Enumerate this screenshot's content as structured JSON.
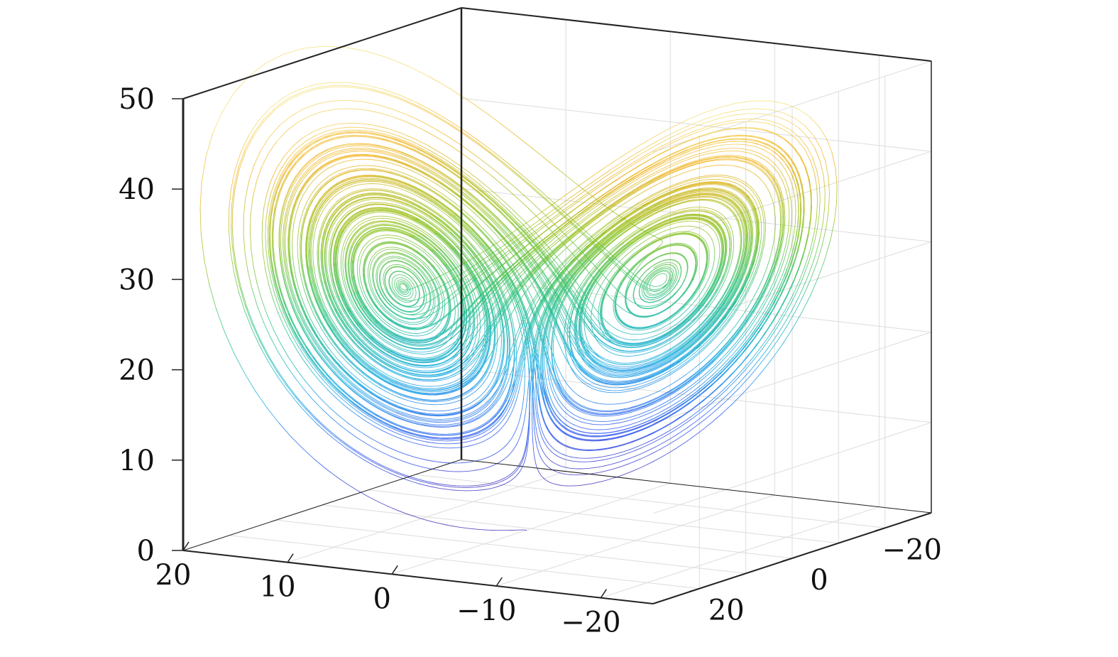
{
  "chart_data": {
    "type": "line",
    "plot_kind": "3d-trajectory",
    "title": "",
    "xlabel": "",
    "ylabel": "",
    "zlabel": "",
    "x_axis": {
      "ticks": [
        20,
        10,
        0,
        -10,
        -20
      ],
      "tick_labels": [
        "20",
        "10",
        "0",
        "−10",
        "−20"
      ],
      "range": [
        -25,
        20
      ]
    },
    "y_axis": {
      "ticks": [
        -20,
        0,
        20
      ],
      "tick_labels": [
        "−20",
        "0",
        "20"
      ],
      "range": [
        -30,
        30
      ]
    },
    "z_axis": {
      "ticks": [
        0,
        10,
        20,
        30,
        40,
        50
      ],
      "tick_labels": [
        "0",
        "10",
        "20",
        "30",
        "40",
        "50"
      ],
      "range": [
        0,
        50
      ]
    },
    "grid": true,
    "series": [
      {
        "system": "lorenz",
        "parameters": {
          "sigma": 10,
          "rho": 28,
          "beta": 2.6667
        },
        "initial_point": [
          0,
          1,
          0
        ],
        "color_by": "z",
        "colormap": [
          "#3b1aa8",
          "#1f4ef0",
          "#0aa8e0",
          "#1fbf7a",
          "#8cc21a",
          "#f0b11a",
          "#f5e27a"
        ]
      }
    ]
  }
}
